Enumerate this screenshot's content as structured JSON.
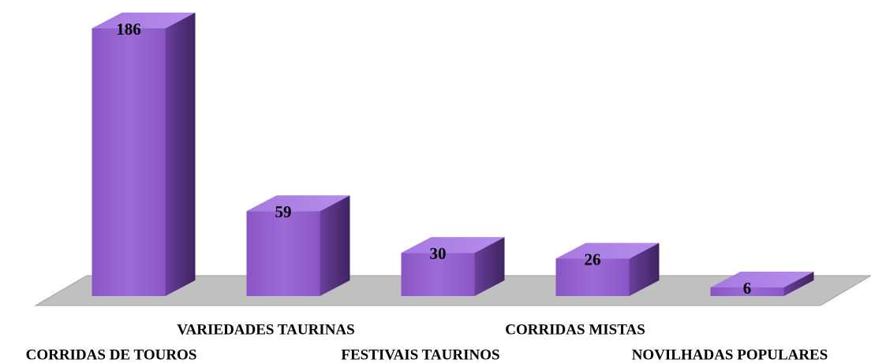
{
  "chart_data": {
    "type": "bar3d",
    "categories": [
      "CORRIDAS DE TOUROS",
      "VARIEDADES TAURINAS",
      "FESTIVAIS TAURINOS",
      "CORRIDAS MISTAS",
      "NOVILHADAS POPULARES"
    ],
    "values": [
      186,
      59,
      30,
      26,
      6
    ],
    "color": "#9461c9"
  }
}
